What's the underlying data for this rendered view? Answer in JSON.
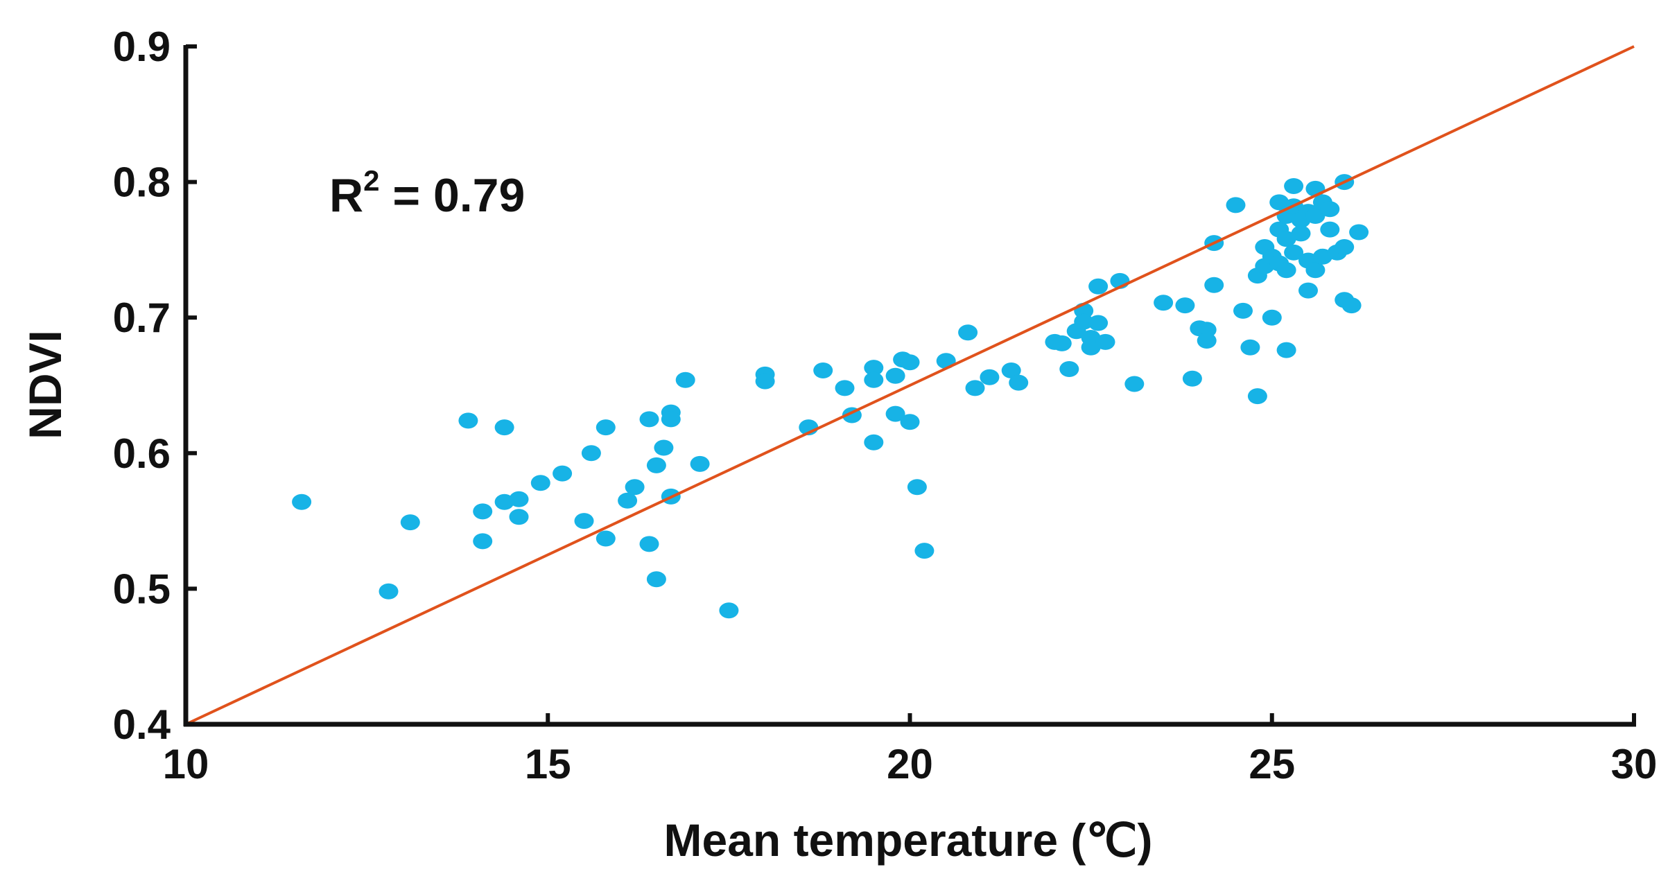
{
  "chart_data": {
    "type": "scatter",
    "title": "",
    "xlabel": "Mean temperature (℃)",
    "ylabel": "NDVI",
    "xlim": [
      10,
      30
    ],
    "ylim": [
      0.4,
      0.9
    ],
    "x_ticks": [
      "10",
      "15",
      "20",
      "25",
      "30"
    ],
    "y_ticks": [
      "0.4",
      "0.5",
      "0.6",
      "0.7",
      "0.8",
      "0.9"
    ],
    "annotation": {
      "base": "R",
      "sup": "2",
      "rest": " = 0.79"
    },
    "colors": {
      "points": "#17b3e6",
      "fit_line": "#e0521c",
      "axis": "#111111"
    },
    "fit_line": {
      "x": [
        10,
        30
      ],
      "y": [
        0.4,
        0.9
      ]
    },
    "points": [
      [
        11.6,
        0.564
      ],
      [
        12.8,
        0.498
      ],
      [
        13.1,
        0.549
      ],
      [
        13.9,
        0.624
      ],
      [
        14.1,
        0.557
      ],
      [
        14.1,
        0.535
      ],
      [
        14.4,
        0.619
      ],
      [
        14.4,
        0.564
      ],
      [
        14.6,
        0.566
      ],
      [
        14.6,
        0.553
      ],
      [
        14.9,
        0.578
      ],
      [
        15.2,
        0.585
      ],
      [
        15.5,
        0.55
      ],
      [
        15.6,
        0.6
      ],
      [
        15.8,
        0.619
      ],
      [
        15.8,
        0.537
      ],
      [
        16.1,
        0.565
      ],
      [
        16.2,
        0.575
      ],
      [
        16.4,
        0.533
      ],
      [
        16.4,
        0.625
      ],
      [
        16.5,
        0.507
      ],
      [
        16.5,
        0.591
      ],
      [
        16.6,
        0.604
      ],
      [
        16.7,
        0.63
      ],
      [
        16.7,
        0.625
      ],
      [
        16.7,
        0.568
      ],
      [
        16.9,
        0.654
      ],
      [
        17.1,
        0.592
      ],
      [
        17.5,
        0.484
      ],
      [
        18.0,
        0.658
      ],
      [
        18.0,
        0.653
      ],
      [
        18.6,
        0.619
      ],
      [
        18.8,
        0.661
      ],
      [
        19.1,
        0.648
      ],
      [
        19.2,
        0.628
      ],
      [
        19.5,
        0.663
      ],
      [
        19.5,
        0.654
      ],
      [
        19.5,
        0.608
      ],
      [
        19.8,
        0.657
      ],
      [
        19.8,
        0.629
      ],
      [
        19.9,
        0.669
      ],
      [
        20.0,
        0.667
      ],
      [
        20.0,
        0.623
      ],
      [
        20.1,
        0.575
      ],
      [
        20.2,
        0.528
      ],
      [
        20.5,
        0.668
      ],
      [
        20.8,
        0.689
      ],
      [
        20.9,
        0.648
      ],
      [
        21.1,
        0.656
      ],
      [
        21.4,
        0.661
      ],
      [
        21.5,
        0.652
      ],
      [
        22.0,
        0.682
      ],
      [
        22.1,
        0.681
      ],
      [
        22.2,
        0.662
      ],
      [
        22.3,
        0.69
      ],
      [
        22.4,
        0.705
      ],
      [
        22.4,
        0.697
      ],
      [
        22.5,
        0.685
      ],
      [
        22.5,
        0.678
      ],
      [
        22.6,
        0.696
      ],
      [
        22.6,
        0.723
      ],
      [
        22.7,
        0.682
      ],
      [
        22.9,
        0.727
      ],
      [
        23.1,
        0.651
      ],
      [
        23.5,
        0.711
      ],
      [
        23.8,
        0.709
      ],
      [
        23.9,
        0.655
      ],
      [
        24.0,
        0.692
      ],
      [
        24.1,
        0.691
      ],
      [
        24.1,
        0.683
      ],
      [
        24.2,
        0.755
      ],
      [
        24.2,
        0.724
      ],
      [
        24.5,
        0.783
      ],
      [
        24.6,
        0.705
      ],
      [
        24.7,
        0.678
      ],
      [
        24.8,
        0.642
      ],
      [
        24.8,
        0.731
      ],
      [
        24.9,
        0.738
      ],
      [
        24.9,
        0.752
      ],
      [
        25.0,
        0.7
      ],
      [
        25.0,
        0.745
      ],
      [
        25.1,
        0.785
      ],
      [
        25.1,
        0.765
      ],
      [
        25.1,
        0.74
      ],
      [
        25.2,
        0.775
      ],
      [
        25.2,
        0.758
      ],
      [
        25.2,
        0.735
      ],
      [
        25.2,
        0.676
      ],
      [
        25.3,
        0.797
      ],
      [
        25.3,
        0.782
      ],
      [
        25.3,
        0.748
      ],
      [
        25.4,
        0.772
      ],
      [
        25.4,
        0.762
      ],
      [
        25.5,
        0.778
      ],
      [
        25.5,
        0.742
      ],
      [
        25.5,
        0.72
      ],
      [
        25.6,
        0.795
      ],
      [
        25.6,
        0.775
      ],
      [
        25.6,
        0.735
      ],
      [
        25.7,
        0.785
      ],
      [
        25.7,
        0.745
      ],
      [
        25.8,
        0.78
      ],
      [
        25.8,
        0.765
      ],
      [
        25.9,
        0.748
      ],
      [
        26.0,
        0.8
      ],
      [
        26.0,
        0.752
      ],
      [
        26.0,
        0.713
      ],
      [
        26.1,
        0.709
      ],
      [
        26.2,
        0.763
      ]
    ]
  }
}
